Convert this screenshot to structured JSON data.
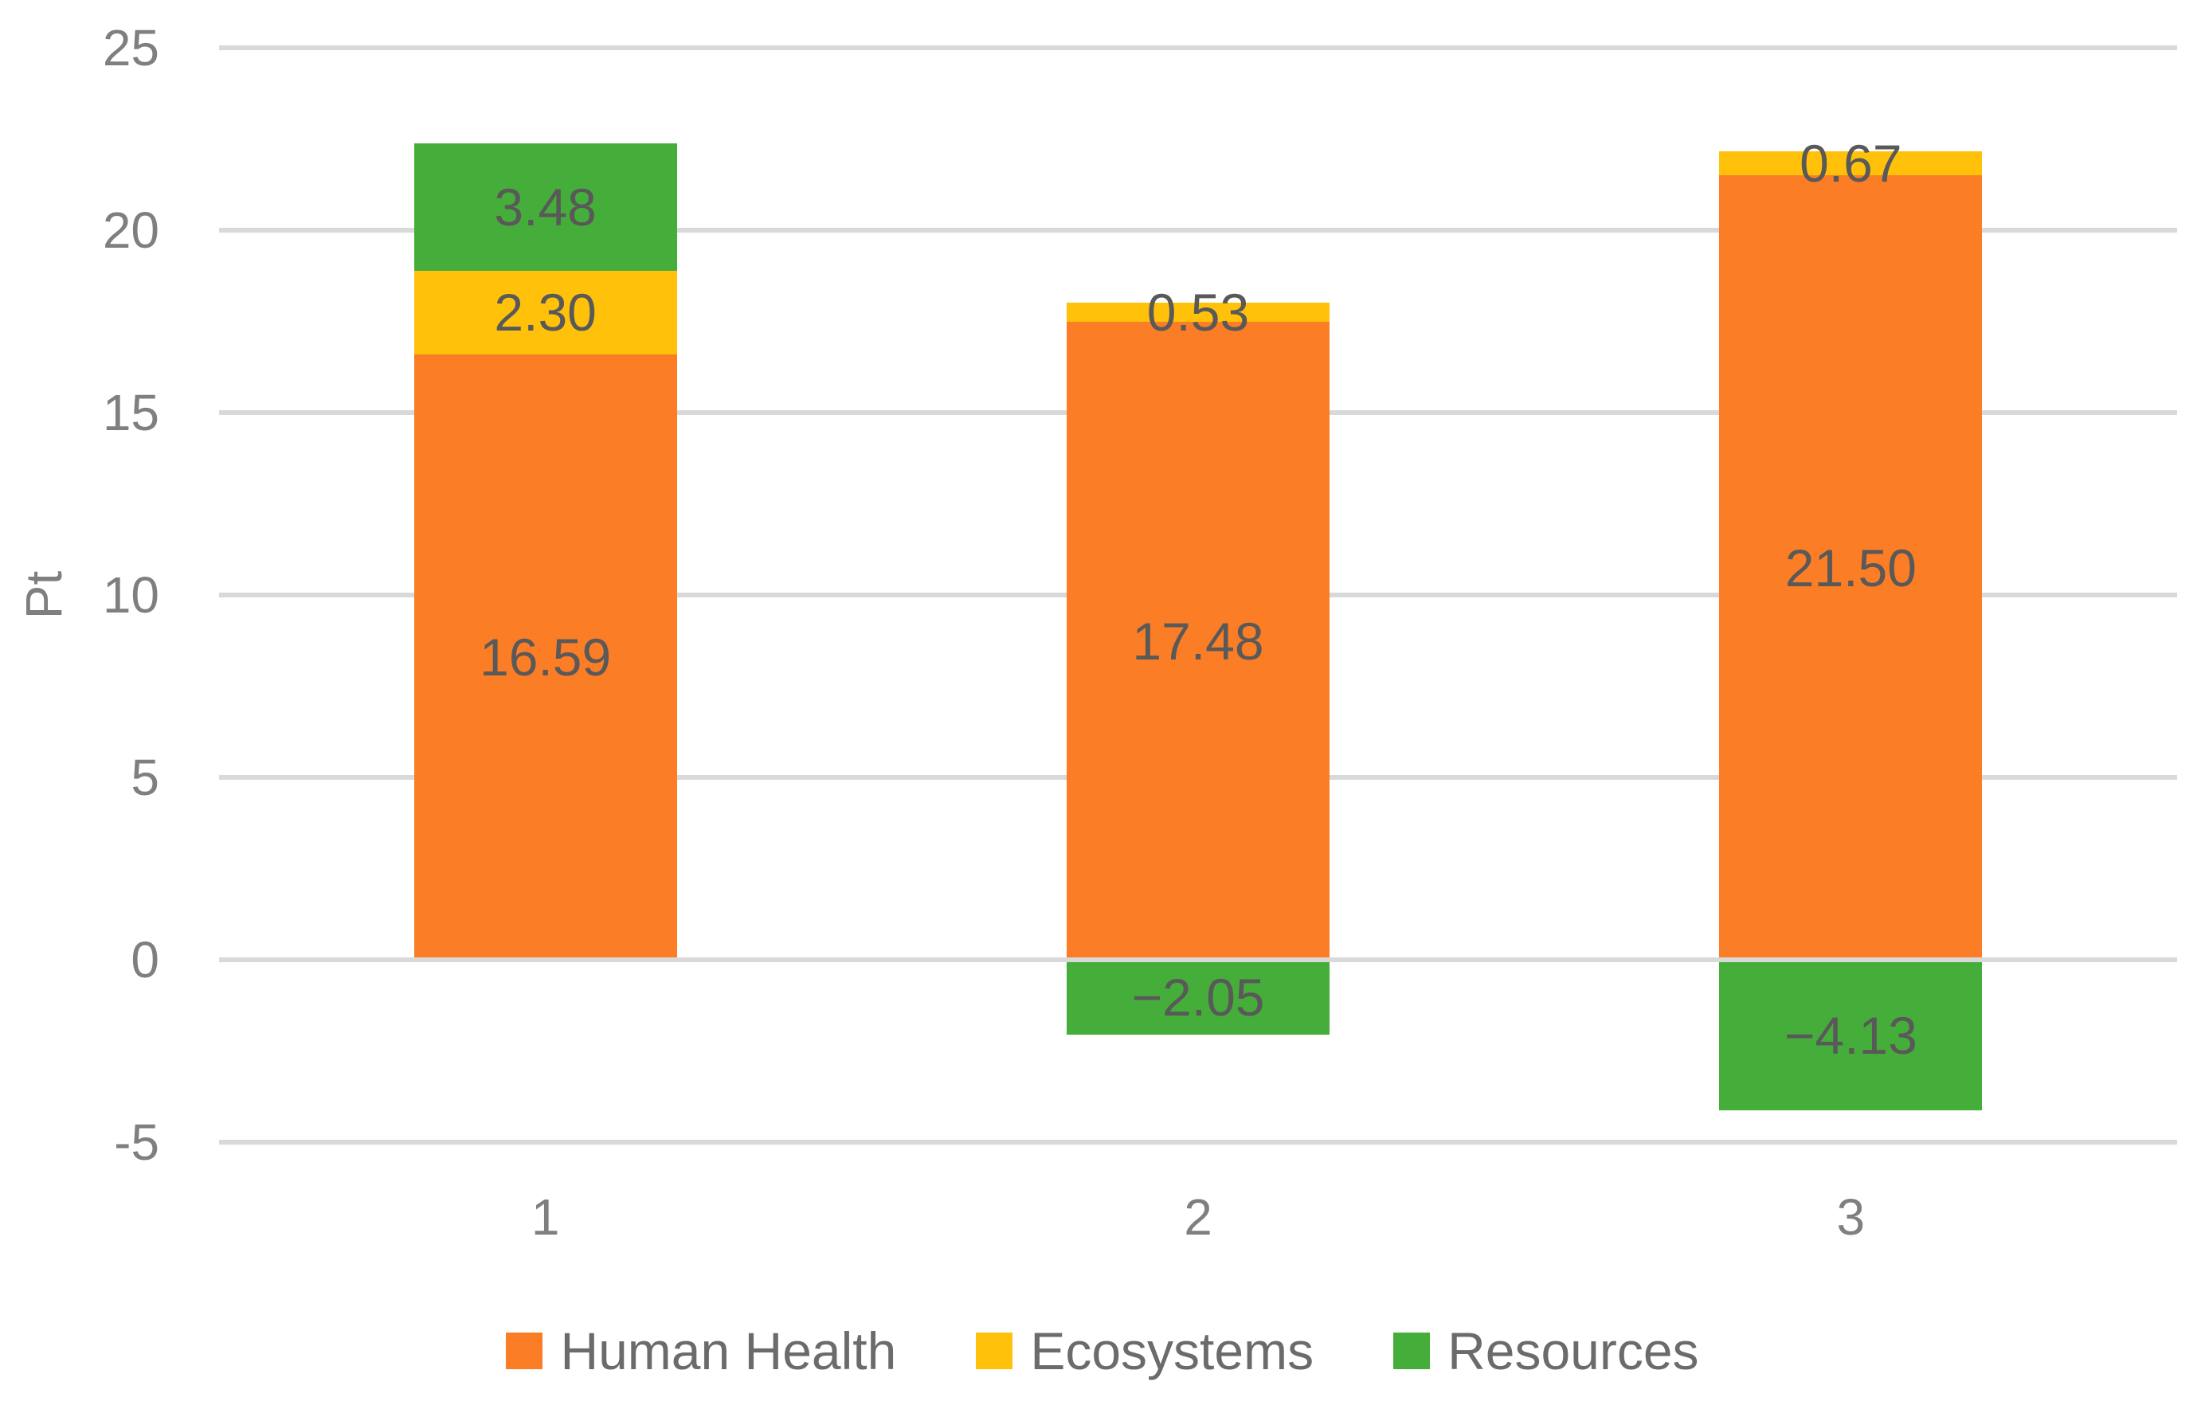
{
  "figure": {
    "background": "#FFFFFF"
  },
  "colors": {
    "human_health": "#FB7D26",
    "ecosystems": "#FFC10A",
    "resources": "#45AE3A",
    "gridline": "#D9D9D9",
    "zero_axis_line": "#D9D9D9",
    "tick_text": "#7F7F7F",
    "category_text": "#7F7F7F",
    "data_label_text": "#595959",
    "legend_text": "#6B6B6B"
  },
  "chart_data": {
    "type": "bar",
    "stacked": true,
    "orientation": "vertical",
    "title": "",
    "xlabel": "",
    "ylabel": "Pt",
    "categories": [
      "1",
      "2",
      "3"
    ],
    "series": [
      {
        "name": "Human Health",
        "color_key": "human_health",
        "values": [
          16.59,
          17.48,
          21.5
        ],
        "labels": [
          "16.59",
          "17.48",
          "21.50"
        ]
      },
      {
        "name": "Ecosystems",
        "color_key": "ecosystems",
        "values": [
          2.3,
          0.53,
          0.67
        ],
        "labels": [
          "2.30",
          "0.53",
          "0.67"
        ]
      },
      {
        "name": "Resources",
        "color_key": "resources",
        "values": [
          3.48,
          -2.05,
          -4.13
        ],
        "labels": [
          "3.48",
          "−2.05",
          "−4.13"
        ]
      }
    ],
    "ylim": [
      -5,
      25
    ],
    "yticks": [
      {
        "value": 25,
        "label": "25"
      },
      {
        "value": 20,
        "label": "20"
      },
      {
        "value": 15,
        "label": "15"
      },
      {
        "value": 10,
        "label": "10"
      },
      {
        "value": 5,
        "label": "5"
      },
      {
        "value": 0,
        "label": "0"
      },
      {
        "value": -5,
        "label": "-5"
      }
    ],
    "grid": true,
    "legend_position": "bottom"
  }
}
